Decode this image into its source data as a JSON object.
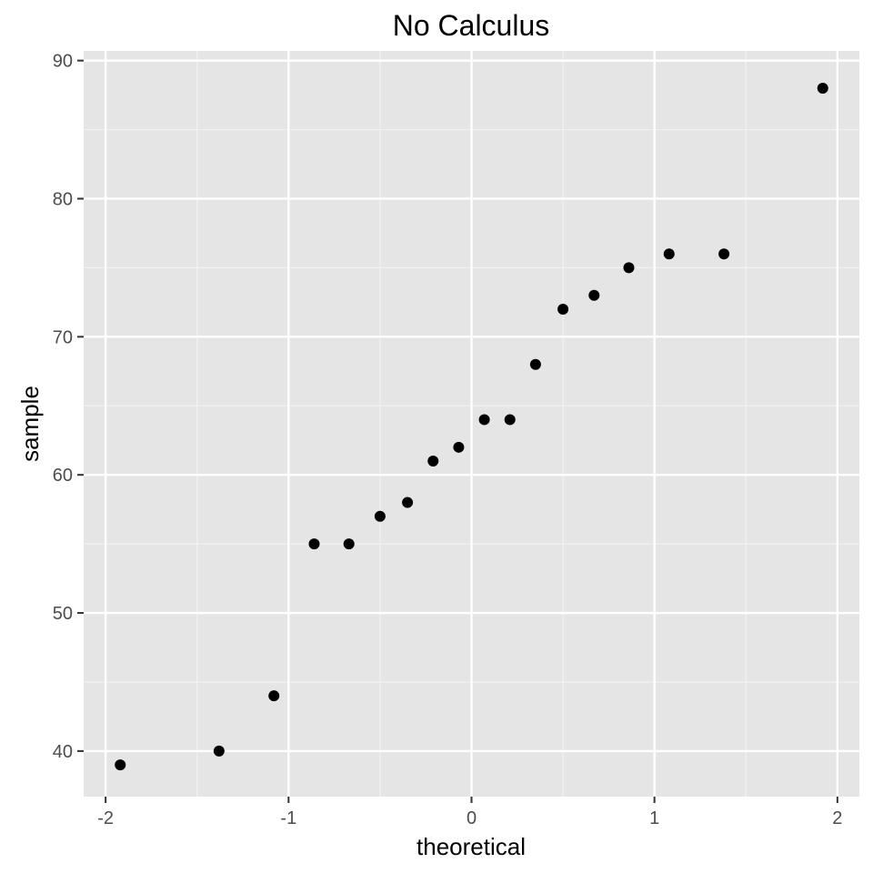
{
  "chart_data": {
    "type": "scatter",
    "title": "No Calculus",
    "xlabel": "theoretical",
    "ylabel": "sample",
    "xlim": [
      -2.12,
      2.12
    ],
    "ylim": [
      36.7,
      90.7
    ],
    "x_ticks": [
      -2,
      -1,
      0,
      1,
      2
    ],
    "y_ticks": [
      40,
      50,
      60,
      70,
      80,
      90
    ],
    "x_tick_labels": [
      "-2",
      "-1",
      "0",
      "1",
      "2"
    ],
    "y_tick_labels": [
      "40",
      "50",
      "60",
      "70",
      "80",
      "90"
    ],
    "grid": true,
    "legend": "none",
    "colors": {
      "panel": "#e5e5e5",
      "grid_major": "#ffffff",
      "grid_minor": "#f2f2f2",
      "point": "#000000",
      "tick": "#333333"
    },
    "points": [
      {
        "x": -1.92,
        "y": 39
      },
      {
        "x": -1.38,
        "y": 40
      },
      {
        "x": -1.08,
        "y": 44
      },
      {
        "x": -0.86,
        "y": 55
      },
      {
        "x": -0.67,
        "y": 55
      },
      {
        "x": -0.5,
        "y": 57
      },
      {
        "x": -0.35,
        "y": 58
      },
      {
        "x": -0.21,
        "y": 61
      },
      {
        "x": -0.07,
        "y": 62
      },
      {
        "x": 0.07,
        "y": 64
      },
      {
        "x": 0.21,
        "y": 64
      },
      {
        "x": 0.35,
        "y": 68
      },
      {
        "x": 0.5,
        "y": 72
      },
      {
        "x": 0.67,
        "y": 73
      },
      {
        "x": 0.86,
        "y": 75
      },
      {
        "x": 1.08,
        "y": 76
      },
      {
        "x": 1.38,
        "y": 76
      },
      {
        "x": 1.92,
        "y": 88
      }
    ]
  }
}
